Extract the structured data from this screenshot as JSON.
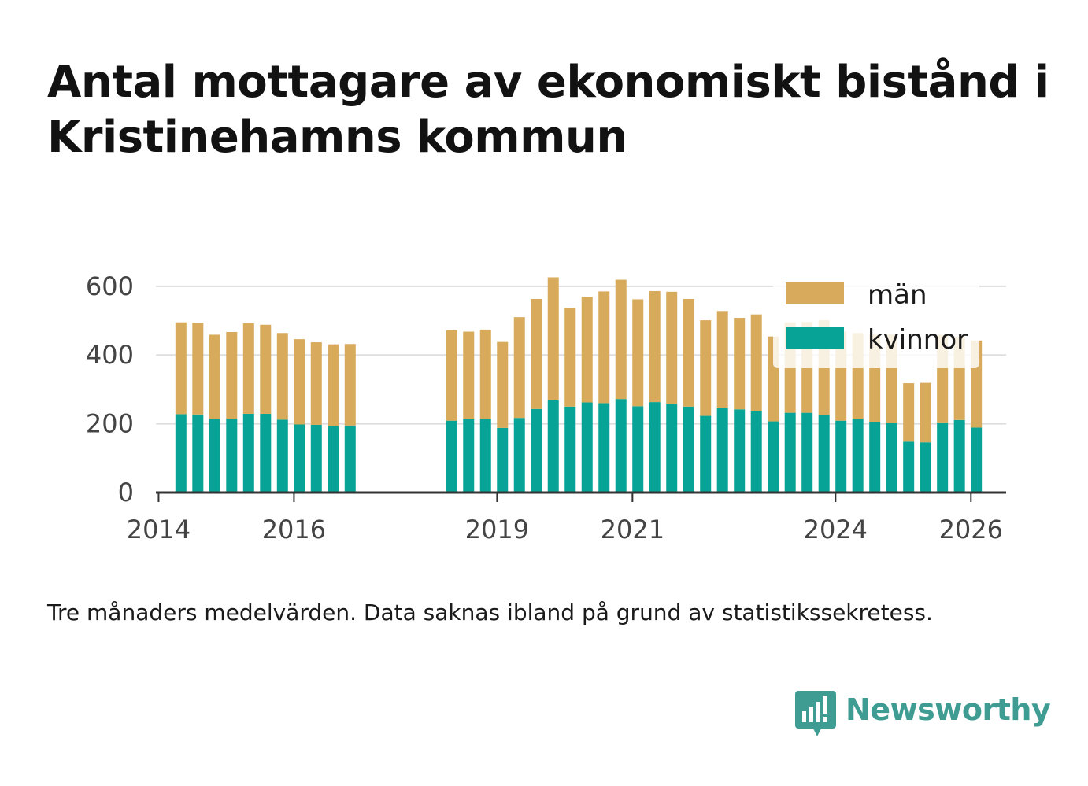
{
  "title": "Antal mottagare av ekonomiskt bistånd i Kristinehamns kommun",
  "caption": "Tre månaders medelvärden. Data saknas ibland på grund av statistikssekretess.",
  "brand": {
    "name": "Newsworthy",
    "icon": "newsworthy-logo-icon",
    "color": "#3f9c92"
  },
  "colors": {
    "women": "#06a396",
    "men": "#d8aa5b",
    "grid": "#dddddd",
    "axis": "#333333"
  },
  "chart_data": {
    "type": "bar",
    "stacked": true,
    "x_unit": "year",
    "x_ticks": [
      2014,
      2016,
      2019,
      2021,
      2024,
      2026
    ],
    "ylim": [
      0,
      650
    ],
    "y_ticks": [
      0,
      200,
      400,
      600
    ],
    "grid": true,
    "legend_position": "top-right",
    "series": [
      {
        "name": "kvinnor",
        "color": "#06a396"
      },
      {
        "name": "män",
        "color": "#d8aa5b"
      }
    ],
    "legend_order": [
      "män",
      "kvinnor"
    ],
    "x": [
      2014.33,
      2014.58,
      2014.83,
      2015.08,
      2015.33,
      2015.58,
      2015.83,
      2016.08,
      2016.33,
      2016.58,
      2016.83,
      2018.33,
      2018.58,
      2018.83,
      2019.08,
      2019.33,
      2019.58,
      2019.83,
      2020.08,
      2020.33,
      2020.58,
      2020.83,
      2021.08,
      2021.33,
      2021.58,
      2021.83,
      2022.08,
      2022.33,
      2022.58,
      2022.83,
      2023.08,
      2023.33,
      2023.58,
      2023.83,
      2024.08,
      2024.33,
      2024.58,
      2024.83,
      2025.08,
      2025.33,
      2025.58,
      2025.83,
      2026.08
    ],
    "kvinnor": [
      228,
      227,
      214,
      215,
      229,
      229,
      212,
      198,
      197,
      193,
      195,
      209,
      213,
      214,
      188,
      217,
      243,
      268,
      250,
      262,
      260,
      272,
      251,
      263,
      258,
      250,
      223,
      245,
      242,
      236,
      207,
      232,
      232,
      226,
      209,
      215,
      206,
      203,
      148,
      146,
      204,
      211,
      189
    ],
    "män": [
      267,
      267,
      245,
      252,
      263,
      259,
      252,
      248,
      240,
      238,
      237,
      263,
      255,
      260,
      250,
      293,
      320,
      358,
      287,
      307,
      325,
      347,
      311,
      323,
      326,
      313,
      278,
      283,
      266,
      282,
      247,
      263,
      264,
      275,
      259,
      249,
      253,
      257,
      170,
      173,
      255,
      242,
      253
    ]
  }
}
